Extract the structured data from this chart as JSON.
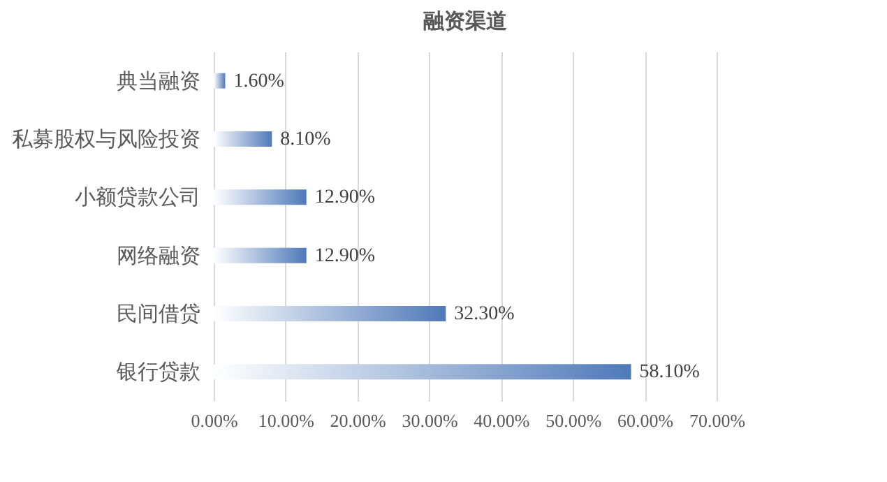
{
  "chart_data": {
    "type": "bar",
    "orientation": "horizontal",
    "title": "融资渠道",
    "categories": [
      "典当融资",
      "私募股权与风险投资",
      "小额贷款公司",
      "网络融资",
      "民间借贷",
      "银行贷款"
    ],
    "values": [
      1.6,
      8.1,
      12.9,
      12.9,
      32.3,
      58.1
    ],
    "value_labels": [
      "1.60%",
      "8.10%",
      "12.90%",
      "12.90%",
      "32.30%",
      "58.10%"
    ],
    "color": "#4f79b9",
    "xlim": [
      0,
      70
    ],
    "xticks": [
      {
        "value": 0,
        "label": "0.00%"
      },
      {
        "value": 10,
        "label": "10.00%"
      },
      {
        "value": 20,
        "label": "20.00%"
      },
      {
        "value": 30,
        "label": "30.00%"
      },
      {
        "value": 40,
        "label": "40.00%"
      },
      {
        "value": 50,
        "label": "50.00%"
      },
      {
        "value": 60,
        "label": "60.00%"
      },
      {
        "value": 70,
        "label": "70.00%"
      }
    ],
    "grid": "x"
  }
}
